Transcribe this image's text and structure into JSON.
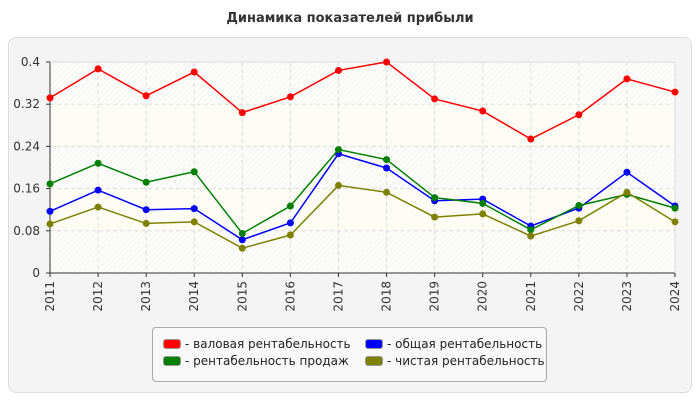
{
  "chart_data": {
    "type": "line",
    "title": "Динамика показателей прибыли",
    "x": [
      "2011",
      "2012",
      "2013",
      "2014",
      "2015",
      "2016",
      "2017",
      "2018",
      "2019",
      "2020",
      "2021",
      "2022",
      "2023",
      "2024"
    ],
    "ylim": [
      0,
      0.4
    ],
    "yticks": [
      "0",
      "0.08",
      "0.16",
      "0.24",
      "0.32",
      "0.4"
    ],
    "grid": true,
    "legend_position": "bottom",
    "series": [
      {
        "name": "- валовая рентабельность",
        "color": "#ff0000",
        "values": [
          0.332,
          0.387,
          0.336,
          0.381,
          0.304,
          0.334,
          0.384,
          0.4,
          0.33,
          0.307,
          0.254,
          0.3,
          0.368,
          0.343
        ]
      },
      {
        "name": "- общая рентабельность",
        "color": "#0000ff",
        "values": [
          0.117,
          0.157,
          0.12,
          0.122,
          0.063,
          0.095,
          0.226,
          0.199,
          0.137,
          0.14,
          0.089,
          0.123,
          0.191,
          0.127
        ]
      },
      {
        "name": "- рентабельность продаж",
        "color": "#008000",
        "values": [
          0.169,
          0.208,
          0.172,
          0.192,
          0.075,
          0.127,
          0.234,
          0.215,
          0.143,
          0.132,
          0.082,
          0.128,
          0.149,
          0.123
        ]
      },
      {
        "name": "- чистая рентабельность",
        "color": "#808000",
        "values": [
          0.093,
          0.125,
          0.094,
          0.097,
          0.047,
          0.072,
          0.166,
          0.153,
          0.106,
          0.112,
          0.07,
          0.099,
          0.153,
          0.097
        ]
      }
    ]
  }
}
